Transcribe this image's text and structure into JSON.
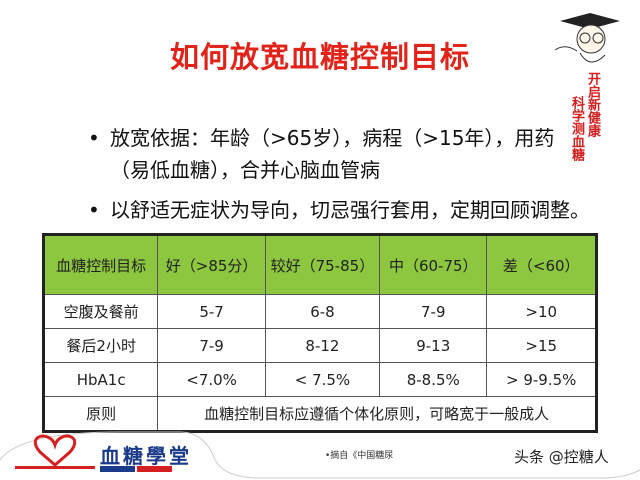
{
  "title": "如何放宽血糖控制目标",
  "bullets": [
    "放宽依据：年龄（>65岁），病程（>15年），用药",
    "（易低血糖），合并心脑血管病",
    "以舒适无症状为导向，切忌强行套用，定期回顾调整。"
  ],
  "slogan": {
    "line1": "开启新健康",
    "line2": "科学测血糖"
  },
  "table": {
    "header": [
      "血糖控制目标",
      "好（>85分）",
      "较好（75-85）",
      "中（60-75）",
      "差（<60）"
    ],
    "rows": [
      [
        "空腹及餐前",
        "5-7",
        "6-8",
        "7-9",
        ">10"
      ],
      [
        "餐后2小时",
        "7-9",
        "8-12",
        "9-13",
        ">15"
      ],
      [
        "HbA1c",
        "<7.0%",
        "< 7.5%",
        "8-8.5%",
        "> 9-9.5%"
      ]
    ],
    "principle_label": "原则",
    "principle_text": "血糖控制目标应遵循个体化原则，可略宽于一般成人"
  },
  "footer": {
    "logo": "血糖學堂",
    "source": "•摘自《中国糖尿",
    "watermark": "头条 @控糖人"
  },
  "colors": {
    "title": "#e2231a",
    "header_bg": "#8dc63f"
  }
}
